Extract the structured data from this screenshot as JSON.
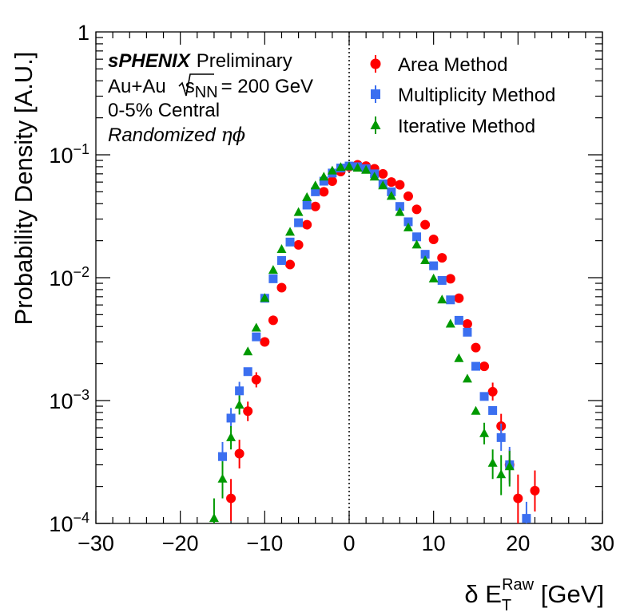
{
  "chart_data": {
    "type": "scatter",
    "xlabel": {
      "prefix": "δ E",
      "sub": "T",
      "sup": "Raw",
      "suffix": " [GeV]"
    },
    "ylabel": "Probability Density [A.U.]",
    "xlim": [
      -30,
      30
    ],
    "ylim": [
      0.0001,
      1
    ],
    "yscale": "log",
    "x_ticks": [
      -30,
      -20,
      -10,
      0,
      10,
      20,
      30
    ],
    "x_tick_labels": [
      "−30",
      "−20",
      "−10",
      "0",
      "10",
      "20",
      "30"
    ],
    "y_ticks": [
      {
        "value": 1,
        "base": "1",
        "exp": ""
      },
      {
        "value": 0.1,
        "base": "10",
        "exp": "−1"
      },
      {
        "value": 0.01,
        "base": "10",
        "exp": "−2"
      },
      {
        "value": 0.001,
        "base": "10",
        "exp": "−3"
      },
      {
        "value": 0.0001,
        "base": "10",
        "exp": "−4"
      }
    ],
    "reference_line_x": 0,
    "annotations": {
      "brand": "sPHENIX",
      "status": "Preliminary",
      "system_prefix": "Au+Au",
      "system_s": "s",
      "system_sub": "NN",
      "system_suffix": "= 200 GeV",
      "centrality": "0-5% Central",
      "method_prefix": "Randomized ",
      "method_symbols": "ηϕ"
    },
    "legend_position": "top-right",
    "series": [
      {
        "name": "Area Method",
        "marker": "circle",
        "color": "#ff0000",
        "points": [
          {
            "x": -14,
            "y": 0.00016,
            "lo": 0.000105,
            "hi": 0.00023
          },
          {
            "x": -13,
            "y": 0.00037,
            "lo": 0.00028,
            "hi": 0.00048
          },
          {
            "x": -12,
            "y": 0.00082,
            "lo": 0.00068,
            "hi": 0.00098
          },
          {
            "x": -11,
            "y": 0.00148,
            "lo": 0.00128,
            "hi": 0.0017
          },
          {
            "x": -10,
            "y": 0.003
          },
          {
            "x": -9,
            "y": 0.0045
          },
          {
            "x": -8,
            "y": 0.0083
          },
          {
            "x": -7,
            "y": 0.0128
          },
          {
            "x": -6,
            "y": 0.0185
          },
          {
            "x": -5,
            "y": 0.027
          },
          {
            "x": -4,
            "y": 0.038
          },
          {
            "x": -3,
            "y": 0.05
          },
          {
            "x": -2,
            "y": 0.061
          },
          {
            "x": -1,
            "y": 0.073
          },
          {
            "x": 0,
            "y": 0.08
          },
          {
            "x": 1,
            "y": 0.083
          },
          {
            "x": 2,
            "y": 0.081
          },
          {
            "x": 3,
            "y": 0.077
          },
          {
            "x": 4,
            "y": 0.07
          },
          {
            "x": 5,
            "y": 0.06
          },
          {
            "x": 6,
            "y": 0.057
          },
          {
            "x": 7,
            "y": 0.046
          },
          {
            "x": 8,
            "y": 0.036
          },
          {
            "x": 9,
            "y": 0.027
          },
          {
            "x": 10,
            "y": 0.0205
          },
          {
            "x": 11,
            "y": 0.0145
          },
          {
            "x": 12,
            "y": 0.0098
          },
          {
            "x": 13,
            "y": 0.0068
          },
          {
            "x": 14,
            "y": 0.0042
          },
          {
            "x": 15,
            "y": 0.0027
          },
          {
            "x": 16,
            "y": 0.0019
          },
          {
            "x": 17,
            "y": 0.00118,
            "lo": 0.001,
            "hi": 0.0014
          },
          {
            "x": 18,
            "y": 0.00062,
            "lo": 0.0005,
            "hi": 0.00078
          },
          {
            "x": 19,
            "y": 0.0003,
            "lo": 0.00022,
            "hi": 0.0004
          },
          {
            "x": 20,
            "y": 0.00016,
            "lo": 0.0001,
            "hi": 0.00025
          },
          {
            "x": 22,
            "y": 0.000185,
            "lo": 0.000125,
            "hi": 0.00027
          }
        ]
      },
      {
        "name": "Multiplicity Method",
        "marker": "square",
        "color": "#3b6ff0",
        "points": [
          {
            "x": -15,
            "y": 0.00035,
            "lo": 0.00026,
            "hi": 0.00046
          },
          {
            "x": -14,
            "y": 0.00072,
            "lo": 0.0006,
            "hi": 0.00087
          },
          {
            "x": -13,
            "y": 0.0012,
            "lo": 0.001,
            "hi": 0.00142
          },
          {
            "x": -12,
            "y": 0.00172
          },
          {
            "x": -11,
            "y": 0.0033
          },
          {
            "x": -10,
            "y": 0.0068
          },
          {
            "x": -9,
            "y": 0.0098
          },
          {
            "x": -8,
            "y": 0.0138
          },
          {
            "x": -7,
            "y": 0.0195
          },
          {
            "x": -6,
            "y": 0.028
          },
          {
            "x": -5,
            "y": 0.039
          },
          {
            "x": -4,
            "y": 0.05
          },
          {
            "x": -3,
            "y": 0.061
          },
          {
            "x": -2,
            "y": 0.071
          },
          {
            "x": -1,
            "y": 0.078
          },
          {
            "x": 0,
            "y": 0.081
          },
          {
            "x": 1,
            "y": 0.08
          },
          {
            "x": 2,
            "y": 0.077
          },
          {
            "x": 3,
            "y": 0.07
          },
          {
            "x": 4,
            "y": 0.058
          },
          {
            "x": 5,
            "y": 0.05
          },
          {
            "x": 6,
            "y": 0.038
          },
          {
            "x": 7,
            "y": 0.0285
          },
          {
            "x": 8,
            "y": 0.0215
          },
          {
            "x": 9,
            "y": 0.0155
          },
          {
            "x": 10,
            "y": 0.0125
          },
          {
            "x": 11,
            "y": 0.0095
          },
          {
            "x": 12,
            "y": 0.0066
          },
          {
            "x": 13,
            "y": 0.0045
          },
          {
            "x": 14,
            "y": 0.0036
          },
          {
            "x": 15,
            "y": 0.0019
          },
          {
            "x": 16,
            "y": 0.00108
          },
          {
            "x": 17,
            "y": 0.00083
          },
          {
            "x": 18,
            "y": 0.0005,
            "lo": 0.00039,
            "hi": 0.00065
          },
          {
            "x": 19,
            "y": 0.0003,
            "lo": 0.00021,
            "hi": 0.00042
          },
          {
            "x": 21,
            "y": 0.00011,
            "lo": 8e-05,
            "hi": 0.00015
          }
        ]
      },
      {
        "name": "Iterative Method",
        "marker": "triangle",
        "color": "#009900",
        "points": [
          {
            "x": -16,
            "y": 0.00011,
            "lo": 7e-05,
            "hi": 0.00016
          },
          {
            "x": -15,
            "y": 0.00023,
            "lo": 0.00016,
            "hi": 0.00032
          },
          {
            "x": -14,
            "y": 0.0005,
            "lo": 0.0004,
            "hi": 0.00062
          },
          {
            "x": -13,
            "y": 0.00092,
            "lo": 0.00077,
            "hi": 0.0011
          },
          {
            "x": -12,
            "y": 0.0025
          },
          {
            "x": -11,
            "y": 0.0039
          },
          {
            "x": -10,
            "y": 0.0068
          },
          {
            "x": -9,
            "y": 0.0115
          },
          {
            "x": -8,
            "y": 0.017
          },
          {
            "x": -7,
            "y": 0.0235
          },
          {
            "x": -6,
            "y": 0.034
          },
          {
            "x": -5,
            "y": 0.045
          },
          {
            "x": -4,
            "y": 0.056
          },
          {
            "x": -3,
            "y": 0.066
          },
          {
            "x": -2,
            "y": 0.074
          },
          {
            "x": -1,
            "y": 0.079
          },
          {
            "x": 0,
            "y": 0.08
          },
          {
            "x": 1,
            "y": 0.078
          },
          {
            "x": 2,
            "y": 0.075
          },
          {
            "x": 3,
            "y": 0.066
          },
          {
            "x": 4,
            "y": 0.056
          },
          {
            "x": 5,
            "y": 0.046
          },
          {
            "x": 6,
            "y": 0.034
          },
          {
            "x": 7,
            "y": 0.0255
          },
          {
            "x": 8,
            "y": 0.0185
          },
          {
            "x": 9,
            "y": 0.0138
          },
          {
            "x": 10,
            "y": 0.0098
          },
          {
            "x": 11,
            "y": 0.0066
          },
          {
            "x": 12,
            "y": 0.0042
          },
          {
            "x": 13,
            "y": 0.0022
          },
          {
            "x": 14,
            "y": 0.0015
          },
          {
            "x": 15,
            "y": 0.00082
          },
          {
            "x": 16,
            "y": 0.00054,
            "lo": 0.00044,
            "hi": 0.00066
          },
          {
            "x": 17,
            "y": 0.00031,
            "lo": 0.00023,
            "hi": 0.0004
          },
          {
            "x": 18,
            "y": 0.00025,
            "lo": 0.00017,
            "hi": 0.00036
          },
          {
            "x": 19,
            "y": 0.00029,
            "lo": 0.0002,
            "hi": 0.00039
          }
        ]
      }
    ]
  }
}
